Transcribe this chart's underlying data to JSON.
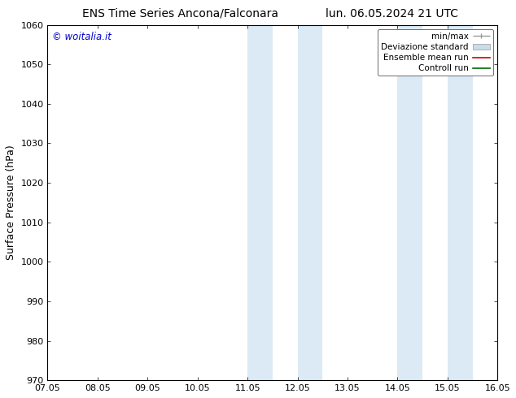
{
  "title_left": "ENS Time Series Ancona/Falconara",
  "title_right": "lun. 06.05.2024 21 UTC",
  "ylabel": "Surface Pressure (hPa)",
  "xlabel": "",
  "watermark": "© woitalia.it",
  "watermark_color": "#0000cc",
  "xtick_labels": [
    "07.05",
    "08.05",
    "09.05",
    "10.05",
    "11.05",
    "12.05",
    "13.05",
    "14.05",
    "15.05",
    "16.05"
  ],
  "xtick_positions": [
    0,
    1,
    2,
    3,
    4,
    5,
    6,
    7,
    8,
    9
  ],
  "ylim": [
    970,
    1060
  ],
  "ytick_step": 10,
  "shaded_bands": [
    {
      "x_start": 4.0,
      "x_end": 4.5,
      "color": "#dbeaf5"
    },
    {
      "x_start": 5.0,
      "x_end": 5.5,
      "color": "#dbeaf5"
    },
    {
      "x_start": 7.0,
      "x_end": 7.5,
      "color": "#dbeaf5"
    },
    {
      "x_start": 8.0,
      "x_end": 8.5,
      "color": "#dbeaf5"
    }
  ],
  "legend_labels": [
    "min/max",
    "Deviazione standard",
    "Ensemble mean run",
    "Controll run"
  ],
  "legend_colors_line": [
    "#999999",
    "#c8dcea",
    "#cc0000",
    "#006600"
  ],
  "bg_color": "#ffffff",
  "spine_color": "#000000",
  "title_fontsize": 10,
  "tick_fontsize": 8,
  "ylabel_fontsize": 9
}
